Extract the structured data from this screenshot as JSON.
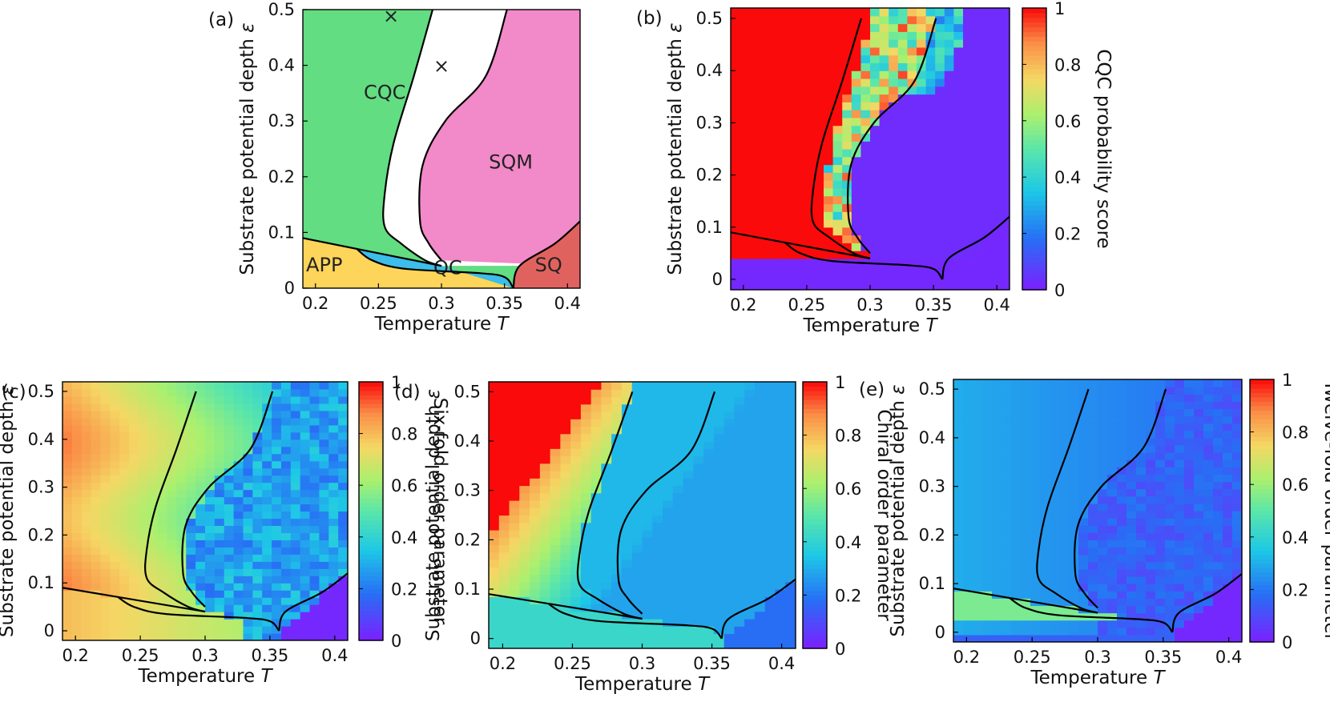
{
  "chart_data": [
    {
      "id": "a",
      "type": "area",
      "panel_label": "(a)",
      "xlabel": "Temperature",
      "xlabel_symbol": "T",
      "ylabel": "Substrate potential depth",
      "ylabel_symbol": "ε",
      "xlim": [
        0.19,
        0.41
      ],
      "ylim": [
        0,
        0.5
      ],
      "xticks": [
        "0.2",
        "0.25",
        "0.3",
        "0.35",
        "0.4"
      ],
      "yticks": [
        "0",
        "0.1",
        "0.2",
        "0.3",
        "0.4",
        "0.5"
      ],
      "regions": [
        {
          "name": "CQC",
          "label_at": [
            0.255,
            0.34
          ],
          "color": "#62dd82"
        },
        {
          "name": "SQM",
          "label_at": [
            0.355,
            0.215
          ],
          "color": "#f289c9"
        },
        {
          "name": "APP",
          "label_at": [
            0.207,
            0.03
          ],
          "color": "#fcd55a"
        },
        {
          "name": "QC",
          "label_at": [
            0.305,
            0.025
          ],
          "color": "#3dbde9"
        },
        {
          "name": "SQ",
          "label_at": [
            0.385,
            0.03
          ],
          "color": "#e0625f"
        }
      ],
      "markers": [
        {
          "symbol": "×",
          "x": 0.26,
          "y": 0.49
        },
        {
          "symbol": "×",
          "x": 0.3,
          "y": 0.4
        }
      ]
    },
    {
      "id": "b",
      "type": "heatmap",
      "panel_label": "(b)",
      "xlabel": "Temperature",
      "xlabel_symbol": "T",
      "ylabel": "Substrate potential depth",
      "ylabel_symbol": "ε",
      "colorbar_label": "CQC probability score",
      "colorbar_ticks": [
        "0",
        "0.2",
        "0.4",
        "0.6",
        "0.8",
        "1"
      ],
      "xlim": [
        0.19,
        0.41
      ],
      "ylim": [
        -0.02,
        0.52
      ],
      "xticks": [
        "0.2",
        "0.25",
        "0.3",
        "0.35",
        "0.4"
      ],
      "yticks": [
        "0",
        "0.1",
        "0.2",
        "0.3",
        "0.4",
        "0.5"
      ]
    },
    {
      "id": "c",
      "type": "heatmap",
      "panel_label": "(c)",
      "xlabel": "Temperature",
      "xlabel_symbol": "T",
      "ylabel": "Substrate potential depth",
      "ylabel_symbol": "ε",
      "colorbar_label": "Six-fold order parameter",
      "colorbar_ticks": [
        "0",
        "0.2",
        "0.4",
        "0.6",
        "0.8",
        "1"
      ],
      "xlim": [
        0.19,
        0.41
      ],
      "ylim": [
        -0.02,
        0.52
      ],
      "xticks": [
        "0.2",
        "0.25",
        "0.3",
        "0.35",
        "0.4"
      ],
      "yticks": [
        "0",
        "0.1",
        "0.2",
        "0.3",
        "0.4",
        "0.5"
      ]
    },
    {
      "id": "d",
      "type": "heatmap",
      "panel_label": "(d)",
      "xlabel": "Temperature",
      "xlabel_symbol": "T",
      "ylabel": "Substrate potential depth",
      "ylabel_symbol": "ε",
      "colorbar_label": "Chiral order parameter",
      "colorbar_ticks": [
        "0",
        "0.2",
        "0.4",
        "0.6",
        "0.8",
        "1"
      ],
      "xlim": [
        0.19,
        0.41
      ],
      "ylim": [
        -0.02,
        0.52
      ],
      "xticks": [
        "0.2",
        "0.25",
        "0.3",
        "0.35",
        "0.4"
      ],
      "yticks": [
        "0",
        "0.1",
        "0.2",
        "0.3",
        "0.4",
        "0.5"
      ]
    },
    {
      "id": "e",
      "type": "heatmap",
      "panel_label": "(e)",
      "xlabel": "Temperature",
      "xlabel_symbol": "T",
      "ylabel": "Substrate potential depth",
      "ylabel_symbol": "ε",
      "colorbar_label": "Twelve-fold order parameter",
      "colorbar_ticks": [
        "0",
        "0.2",
        "0.4",
        "0.6",
        "0.8",
        "1"
      ],
      "xlim": [
        0.19,
        0.41
      ],
      "ylim": [
        -0.02,
        0.52
      ],
      "xticks": [
        "0.2",
        "0.25",
        "0.3",
        "0.35",
        "0.4"
      ],
      "yticks": [
        "0",
        "0.1",
        "0.2",
        "0.3",
        "0.4",
        "0.5"
      ]
    }
  ],
  "phase_boundaries": {
    "left_curve": [
      [
        0.293,
        0.5
      ],
      [
        0.278,
        0.38
      ],
      [
        0.262,
        0.26
      ],
      [
        0.255,
        0.17
      ],
      [
        0.255,
        0.11
      ],
      [
        0.268,
        0.08
      ],
      [
        0.287,
        0.05
      ],
      [
        0.3,
        0.04
      ]
    ],
    "right_curve": [
      [
        0.352,
        0.5
      ],
      [
        0.335,
        0.38
      ],
      [
        0.303,
        0.3
      ],
      [
        0.285,
        0.22
      ],
      [
        0.283,
        0.12
      ],
      [
        0.29,
        0.08
      ],
      [
        0.3,
        0.05
      ]
    ],
    "app_upper": [
      [
        0.19,
        0.09
      ],
      [
        0.3,
        0.04
      ]
    ],
    "qc_upper": [
      [
        0.233,
        0.07
      ],
      [
        0.245,
        0.05
      ],
      [
        0.27,
        0.035
      ],
      [
        0.33,
        0.027
      ],
      [
        0.35,
        0.02
      ],
      [
        0.357,
        0.0
      ]
    ],
    "sq_left": [
      [
        0.357,
        0.0
      ],
      [
        0.362,
        0.04
      ],
      [
        0.39,
        0.08
      ],
      [
        0.41,
        0.12
      ]
    ]
  },
  "colors": {
    "cqc": "#62dd82",
    "sqm": "#f289c9",
    "app": "#fcd55a",
    "qc": "#3dbde9",
    "sq": "#e0625f",
    "gap": "#ffffff"
  }
}
